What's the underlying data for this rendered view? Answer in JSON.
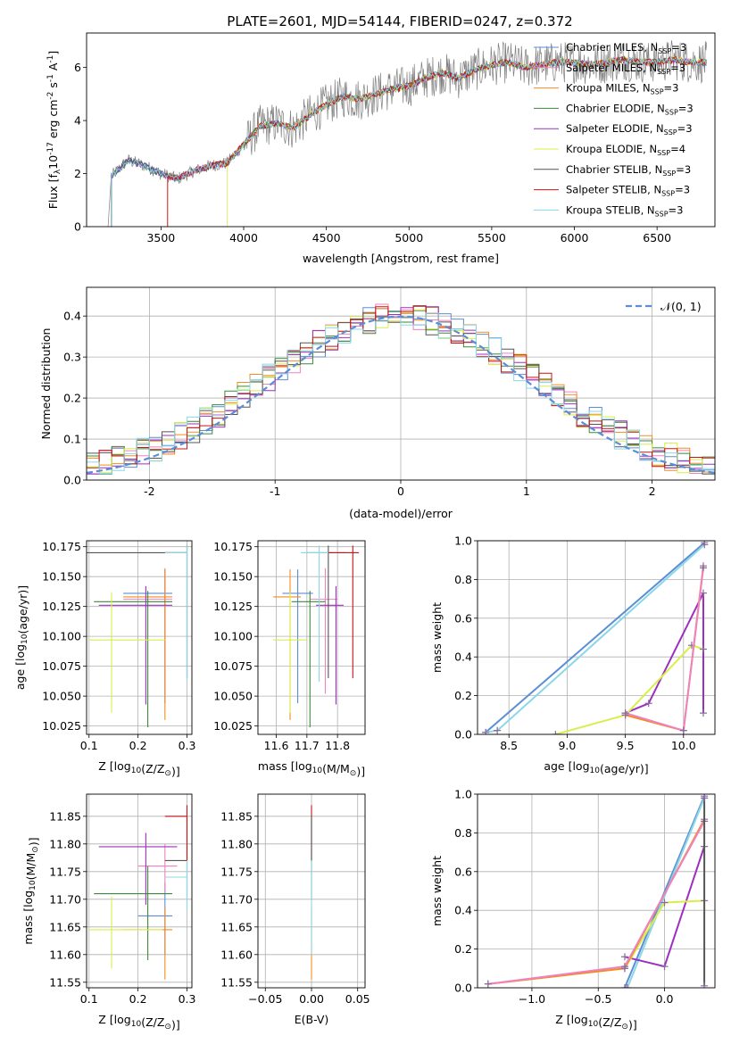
{
  "figure": {
    "title": "PLATE=2601, MJD=54144, FIBERID=0247, z=0.372"
  },
  "colors": {
    "chabrier_miles": "#5b8ed6",
    "salpeter_miles": "#ee82c0",
    "kroupa_miles": "#f58b1f",
    "chabrier_elodie": "#3a8a3a",
    "salpeter_elodie": "#9b30c0",
    "kroupa_elodie": "#d9ee4a",
    "chabrier_stelib": "#555555",
    "salpeter_stelib": "#c81414",
    "kroupa_stelib": "#8ad8e6",
    "normal_curve": "#5b8ed6",
    "grid": "#b0b0b0"
  },
  "chart_data": [
    {
      "id": "spectrum",
      "type": "line",
      "xlabel": "wavelength [Angstrom, rest frame]",
      "ylabel": "Flux [f",
      "ylabel_rest": "10",
      "ylabel_exp": "-17",
      "ylabel_tail": " erg cm",
      "ylabel_exp2": "-2",
      "ylabel_tail2": " s",
      "ylabel_exp3": "-1",
      "ylabel_tail3": " A",
      "ylabel_exp4": "-1",
      "ylabel_end": "]",
      "xlim": [
        3050,
        6850
      ],
      "ylim": [
        0,
        7.3
      ],
      "xticks": [
        3500,
        4000,
        4500,
        5000,
        5500,
        6000,
        6500
      ],
      "yticks": [
        0,
        2,
        4,
        6
      ],
      "grid": false,
      "legend_position": "top-right",
      "legend": [
        {
          "main": "Chabrier MILES, N",
          "sub": "SSP",
          "tail": "=3",
          "color_key": "chabrier_miles"
        },
        {
          "main": "Salpeter MILES, N",
          "sub": "SSP",
          "tail": "=3",
          "color_key": "salpeter_miles"
        },
        {
          "main": "Kroupa MILES, N",
          "sub": "SSP",
          "tail": "=3",
          "color_key": "kroupa_miles"
        },
        {
          "main": "Chabrier ELODIE, N",
          "sub": "SSP",
          "tail": "=3",
          "color_key": "chabrier_elodie"
        },
        {
          "main": "Salpeter ELODIE, N",
          "sub": "SSP",
          "tail": "=3",
          "color_key": "salpeter_elodie"
        },
        {
          "main": "Kroupa ELODIE, N",
          "sub": "SSP",
          "tail": "=4",
          "color_key": "kroupa_elodie"
        },
        {
          "main": "Chabrier STELIB, N",
          "sub": "SSP",
          "tail": "=3",
          "color_key": "chabrier_stelib"
        },
        {
          "main": "Salpeter STELIB, N",
          "sub": "SSP",
          "tail": "=3",
          "color_key": "salpeter_stelib"
        },
        {
          "main": "Kroupa STELIB, N",
          "sub": "SSP",
          "tail": "=3",
          "color_key": "kroupa_stelib"
        }
      ],
      "continuum": {
        "x": [
          3200,
          3300,
          3400,
          3500,
          3600,
          3700,
          3800,
          3900,
          4000,
          4100,
          4200,
          4300,
          4400,
          4500,
          4600,
          4700,
          4800,
          4900,
          5000,
          5100,
          5200,
          5300,
          5400,
          5500,
          5600,
          5700,
          5800,
          5900,
          6000,
          6100,
          6200,
          6300,
          6400,
          6500,
          6600,
          6700,
          6800
        ],
        "y": [
          1.9,
          2.5,
          2.3,
          2.0,
          1.8,
          2.1,
          2.3,
          2.4,
          3.1,
          3.8,
          3.9,
          3.7,
          4.2,
          4.6,
          4.9,
          4.8,
          5.0,
          5.2,
          5.3,
          5.6,
          5.8,
          5.6,
          5.9,
          6.1,
          6.2,
          6.0,
          6.1,
          6.2,
          6.2,
          6.1,
          6.2,
          6.3,
          6.2,
          6.2,
          6.3,
          6.2,
          6.2
        ]
      },
      "model_start_x": 3200,
      "data_start_x": 3200
    },
    {
      "id": "residual-histogram",
      "type": "histogram",
      "xlabel": "(data-model)/error",
      "ylabel": "Normed distribution",
      "xlim": [
        -2.5,
        2.5
      ],
      "ylim": [
        0,
        0.47
      ],
      "xticks": [
        -2,
        -1,
        0,
        1,
        2
      ],
      "yticks": [
        0.0,
        0.1,
        0.2,
        0.3,
        0.4
      ],
      "grid": true,
      "bin_width": 0.1,
      "legend": "𝒩(0, 1)",
      "legend_position": "top-right",
      "normal": {
        "mean": 0,
        "sigma": 1
      }
    },
    {
      "id": "age-vs-metallicity",
      "type": "scatter",
      "xlabel": "Z [log",
      "xlabel_sub": "10",
      "xlabel_tail": "(Z/Z",
      "xlabel_sun": "⊙",
      "xlabel_end": ")]",
      "ylabel": "age  [log",
      "ylabel_sub": "10",
      "ylabel_tail": "(age/yr)]",
      "xlim": [
        0.095,
        0.31
      ],
      "ylim": [
        10.018,
        10.18
      ],
      "xticks": [
        0.1,
        0.2,
        0.3
      ],
      "yticks": [
        10.025,
        10.05,
        10.075,
        10.1,
        10.125,
        10.15,
        10.175
      ],
      "grid": true,
      "points": [
        {
          "key": "chabrier_miles",
          "x": 0.255,
          "y": 10.136,
          "x_err": [
            0.17,
            0.27
          ],
          "y_err": [
            10.044,
            10.156
          ]
        },
        {
          "key": "salpeter_miles",
          "x": 0.255,
          "y": 10.131,
          "x_err": [
            0.17,
            0.27
          ],
          "y_err": [
            10.052,
            10.157
          ]
        },
        {
          "key": "kroupa_miles",
          "x": 0.255,
          "y": 10.133,
          "x_err": [
            0.17,
            0.27
          ],
          "y_err": [
            10.03,
            10.156
          ]
        },
        {
          "key": "chabrier_elodie",
          "x": 0.22,
          "y": 10.129,
          "x_err": [
            0.11,
            0.27
          ],
          "y_err": [
            10.024,
            10.138
          ]
        },
        {
          "key": "salpeter_elodie",
          "x": 0.216,
          "y": 10.126,
          "x_err": [
            0.12,
            0.27
          ],
          "y_err": [
            10.043,
            10.142
          ]
        },
        {
          "key": "kroupa_elodie",
          "x": 0.146,
          "y": 10.097,
          "x_err": [
            0.1,
            0.255
          ],
          "y_err": [
            10.036,
            10.137
          ]
        },
        {
          "key": "chabrier_stelib",
          "x": 0.3,
          "y": 10.17,
          "x_err": [
            0.095,
            0.3
          ],
          "y_err": [
            10.065,
            10.176
          ]
        },
        {
          "key": "salpeter_stelib",
          "x": 0.3,
          "y": 10.17,
          "x_err": [
            0.255,
            0.3
          ],
          "y_err": [
            10.065,
            10.176
          ]
        },
        {
          "key": "kroupa_stelib",
          "x": 0.3,
          "y": 10.17,
          "x_err": [
            0.255,
            0.3
          ],
          "y_err": [
            10.062,
            10.176
          ]
        }
      ]
    },
    {
      "id": "age-vs-mass",
      "type": "scatter",
      "xlabel": "mass [log",
      "xlabel_sub": "10",
      "xlabel_tail": "(M/M",
      "xlabel_sun": "⊙",
      "xlabel_end": ")]",
      "ylabel": "",
      "xlim": [
        11.54,
        11.89
      ],
      "ylim": [
        10.018,
        10.18
      ],
      "xticks": [
        11.6,
        11.7,
        11.8
      ],
      "yticks": [
        10.025,
        10.05,
        10.075,
        10.1,
        10.125,
        10.15,
        10.175
      ],
      "grid": true,
      "points": [
        {
          "key": "chabrier_miles",
          "x": 11.67,
          "y": 10.136,
          "x_err": [
            11.62,
            11.72
          ],
          "y_err": [
            10.044,
            10.156
          ]
        },
        {
          "key": "salpeter_miles",
          "x": 11.76,
          "y": 10.131,
          "x_err": [
            11.71,
            11.8
          ],
          "y_err": [
            10.052,
            10.157
          ]
        },
        {
          "key": "kroupa_miles",
          "x": 11.645,
          "y": 10.133,
          "x_err": [
            11.59,
            11.68
          ],
          "y_err": [
            10.03,
            10.156
          ]
        },
        {
          "key": "chabrier_elodie",
          "x": 11.71,
          "y": 10.129,
          "x_err": [
            11.65,
            11.76
          ],
          "y_err": [
            10.024,
            10.138
          ]
        },
        {
          "key": "salpeter_elodie",
          "x": 11.795,
          "y": 10.126,
          "x_err": [
            11.73,
            11.82
          ],
          "y_err": [
            10.043,
            10.142
          ]
        },
        {
          "key": "kroupa_elodie",
          "x": 11.645,
          "y": 10.097,
          "x_err": [
            11.59,
            11.7
          ],
          "y_err": [
            10.036,
            10.137
          ]
        },
        {
          "key": "chabrier_stelib",
          "x": 11.77,
          "y": 10.17,
          "x_err": [
            11.7,
            11.83
          ],
          "y_err": [
            10.065,
            10.176
          ]
        },
        {
          "key": "salpeter_stelib",
          "x": 11.85,
          "y": 10.17,
          "x_err": [
            11.77,
            11.87
          ],
          "y_err": [
            10.065,
            10.176
          ]
        },
        {
          "key": "kroupa_stelib",
          "x": 11.74,
          "y": 10.17,
          "x_err": [
            11.68,
            11.77
          ],
          "y_err": [
            10.062,
            10.176
          ]
        }
      ]
    },
    {
      "id": "mass-weight-vs-age",
      "type": "line",
      "xlabel": "age  [log",
      "xlabel_sub": "10",
      "xlabel_tail": "(age/yr)]",
      "ylabel": "mass weight",
      "xlim": [
        8.23,
        10.27
      ],
      "ylim": [
        0,
        1
      ],
      "xticks": [
        8.5,
        9.0,
        9.5,
        10.0
      ],
      "yticks": [
        0.0,
        0.2,
        0.4,
        0.6,
        0.8,
        1.0
      ],
      "grid": true,
      "series": [
        {
          "key": "chabrier_miles",
          "x": [
            8.3,
            10.18
          ],
          "y": [
            0.01,
            0.99
          ]
        },
        {
          "key": "kroupa_stelib",
          "x": [
            8.3,
            8.4,
            10.18
          ],
          "y": [
            0.01,
            0.02,
            0.98
          ]
        },
        {
          "key": "salpeter_elodie",
          "x": [
            9.5,
            9.7,
            10.17,
            10.17
          ],
          "y": [
            0.11,
            0.16,
            0.73,
            0.11
          ]
        },
        {
          "key": "kroupa_elodie",
          "x": [
            8.9,
            9.5,
            10.07,
            10.17
          ],
          "y": [
            0.0,
            0.1,
            0.46,
            0.44
          ]
        },
        {
          "key": "kroupa_miles",
          "x": [
            9.5,
            10.0,
            10.17
          ],
          "y": [
            0.1,
            0.02,
            0.87
          ]
        },
        {
          "key": "salpeter_miles",
          "x": [
            9.5,
            10.0,
            10.17
          ],
          "y": [
            0.11,
            0.02,
            0.86
          ]
        }
      ]
    },
    {
      "id": "mass-vs-metallicity",
      "type": "scatter",
      "xlabel": "Z [log",
      "xlabel_sub": "10",
      "xlabel_tail": "(Z/Z",
      "xlabel_sun": "⊙",
      "xlabel_end": ")]",
      "ylabel": "mass [log",
      "ylabel_sub": "10",
      "ylabel_tail": "(M/M",
      "ylabel_sun": "⊙",
      "ylabel_end": ")]",
      "xlim": [
        0.095,
        0.31
      ],
      "ylim": [
        11.54,
        11.89
      ],
      "xticks": [
        0.1,
        0.2,
        0.3
      ],
      "yticks": [
        11.55,
        11.6,
        11.65,
        11.7,
        11.75,
        11.8,
        11.85
      ],
      "grid": true,
      "points": [
        {
          "key": "chabrier_miles",
          "x": 0.255,
          "y": 11.67,
          "x_err": [
            0.2,
            0.27
          ],
          "y_err": [
            11.6,
            11.73
          ]
        },
        {
          "key": "salpeter_miles",
          "x": 0.255,
          "y": 11.76,
          "x_err": [
            0.2,
            0.28
          ],
          "y_err": [
            11.71,
            11.8
          ]
        },
        {
          "key": "kroupa_miles",
          "x": 0.255,
          "y": 11.645,
          "x_err": [
            0.17,
            0.27
          ],
          "y_err": [
            11.555,
            11.685
          ]
        },
        {
          "key": "chabrier_elodie",
          "x": 0.22,
          "y": 11.71,
          "x_err": [
            0.11,
            0.27
          ],
          "y_err": [
            11.59,
            11.76
          ]
        },
        {
          "key": "salpeter_elodie",
          "x": 0.216,
          "y": 11.795,
          "x_err": [
            0.12,
            0.28
          ],
          "y_err": [
            11.69,
            11.82
          ]
        },
        {
          "key": "kroupa_elodie",
          "x": 0.146,
          "y": 11.645,
          "x_err": [
            0.1,
            0.25
          ],
          "y_err": [
            11.575,
            11.705
          ]
        },
        {
          "key": "chabrier_stelib",
          "x": 0.3,
          "y": 11.77,
          "x_err": [
            0.255,
            0.3
          ],
          "y_err": [
            11.7,
            11.85
          ]
        },
        {
          "key": "salpeter_stelib",
          "x": 0.3,
          "y": 11.85,
          "x_err": [
            0.255,
            0.3
          ],
          "y_err": [
            11.77,
            11.87
          ]
        },
        {
          "key": "kroupa_stelib",
          "x": 0.3,
          "y": 11.74,
          "x_err": [
            0.255,
            0.3
          ],
          "y_err": [
            11.68,
            11.77
          ]
        }
      ]
    },
    {
      "id": "mass-vs-ebv",
      "type": "scatter",
      "xlabel": "E(B-V)",
      "ylabel": "",
      "xlim": [
        -0.058,
        0.058
      ],
      "ylim": [
        11.54,
        11.89
      ],
      "xticks": [
        -0.05,
        0.0,
        0.05
      ],
      "xtick_labels": [
        "−0.05",
        "0.00",
        "0.05"
      ],
      "yticks": [
        11.55,
        11.6,
        11.65,
        11.7,
        11.75,
        11.8,
        11.85
      ],
      "grid": true,
      "points": [
        {
          "key": "salpeter_stelib",
          "x": 0.0,
          "y": 11.85,
          "y_err": [
            11.77,
            11.87
          ]
        },
        {
          "key": "chabrier_stelib",
          "x": 0.0,
          "y": 11.77,
          "y_err": [
            11.7,
            11.85
          ]
        },
        {
          "key": "kroupa_miles",
          "x": 0.0,
          "y": 11.645,
          "y_err": [
            11.555,
            11.685
          ]
        },
        {
          "key": "kroupa_stelib",
          "x": 0.0,
          "y": 11.74,
          "y_err": [
            11.6,
            11.77
          ]
        }
      ]
    },
    {
      "id": "mass-weight-vs-metallicity",
      "type": "line",
      "xlabel": "Z [log",
      "xlabel_sub": "10",
      "xlabel_tail": "(Z/Z",
      "xlabel_sun": "⊙",
      "xlabel_end": ")]",
      "ylabel": "mass weight",
      "xlim": [
        -1.41,
        0.38
      ],
      "ylim": [
        0,
        1
      ],
      "xticks": [
        -1.0,
        -0.5,
        0.0
      ],
      "xtick_labels": [
        "−1.0",
        "−0.5",
        "0.0"
      ],
      "yticks": [
        0.0,
        0.2,
        0.4,
        0.6,
        0.8,
        1.0
      ],
      "grid": true,
      "series": [
        {
          "key": "chabrier_miles",
          "x": [
            -0.3,
            0.3
          ],
          "y": [
            0.0,
            0.99
          ]
        },
        {
          "key": "kroupa_stelib",
          "x": [
            -0.28,
            0.3
          ],
          "y": [
            0.0,
            0.98
          ]
        },
        {
          "key": "salpeter_elodie",
          "x": [
            -0.3,
            0.0,
            0.3
          ],
          "y": [
            0.16,
            0.11,
            0.73
          ]
        },
        {
          "key": "kroupa_elodie",
          "x": [
            -0.3,
            0.0,
            0.3
          ],
          "y": [
            0.1,
            0.44,
            0.45
          ]
        },
        {
          "key": "kroupa_miles",
          "x": [
            -1.33,
            -0.3,
            0.3
          ],
          "y": [
            0.02,
            0.1,
            0.87
          ]
        },
        {
          "key": "salpeter_miles",
          "x": [
            -1.33,
            -0.3,
            0.3
          ],
          "y": [
            0.02,
            0.11,
            0.86
          ]
        },
        {
          "key": "chabrier_stelib",
          "x": [
            0.3,
            0.3
          ],
          "y": [
            0.01,
            0.98
          ]
        }
      ]
    }
  ]
}
